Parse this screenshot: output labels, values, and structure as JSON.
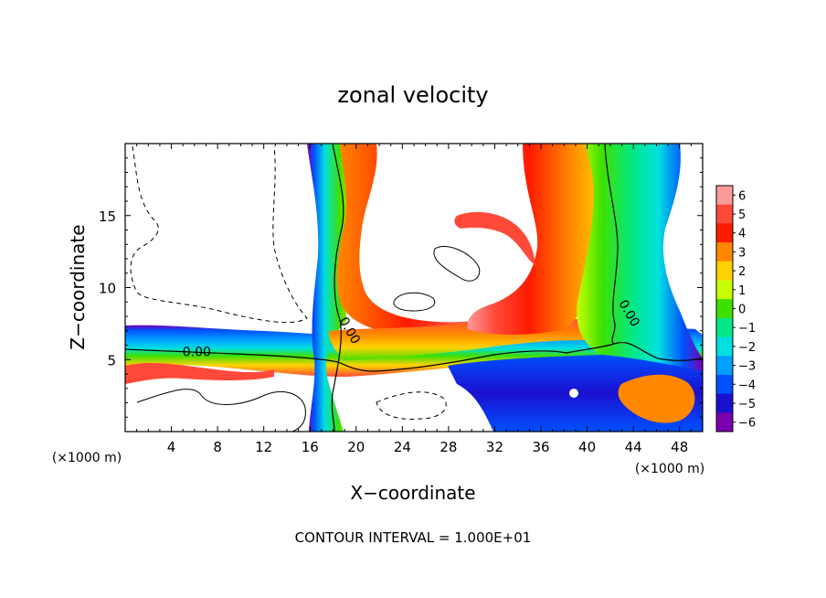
{
  "chart_data": {
    "type": "heatmap",
    "title": "zonal velocity",
    "xlabel": "X−coordinate",
    "ylabel": "Z−coordinate",
    "x_unit_left": "(×1000 m)",
    "x_unit_right": "(×1000 m)",
    "footer": "CONTOUR INTERVAL = 1.000E+01",
    "xlim": [
      0,
      50
    ],
    "ylim": [
      0,
      20
    ],
    "x_ticks": [
      4,
      8,
      12,
      16,
      20,
      24,
      28,
      32,
      36,
      40,
      44,
      48
    ],
    "x_tick_labels": [
      "4",
      "8",
      "12",
      "16",
      "20",
      "24",
      "28",
      "32",
      "36",
      "40",
      "44",
      "48"
    ],
    "y_ticks": [
      5,
      10,
      15
    ],
    "y_tick_labels": [
      "5",
      "10",
      "15"
    ],
    "contour_labels": [
      "0.00",
      "0.00",
      "0.00"
    ],
    "colorbar": {
      "levels": [
        6,
        5,
        4,
        3,
        2,
        1,
        0,
        -1,
        -2,
        -3,
        -4,
        -5,
        -6
      ],
      "tick_labels": [
        "6",
        "5",
        "4",
        "3",
        "2",
        "1",
        "0",
        "−1",
        "−2",
        "−3",
        "−4",
        "−5",
        "−6"
      ],
      "colors": [
        "#ff9a9a",
        "#ff4a3a",
        "#ff1a00",
        "#ff8800",
        "#ffd200",
        "#c8ff00",
        "#3ee000",
        "#00e88a",
        "#00e0e0",
        "#00a0ff",
        "#0050ff",
        "#1a10d0",
        "#7a00b0"
      ]
    },
    "bands": [
      {
        "name": "left-vertical",
        "x": [
          16.0,
          21.0
        ],
        "z": [
          0,
          20
        ],
        "profile": [
          "#7a00b0",
          "#0050ff",
          "#00e0e0",
          "#3ee000",
          "#ffd200",
          "#ff1a00"
        ]
      },
      {
        "name": "middle-vertical",
        "x": [
          19.0,
          22.5
        ],
        "z": [
          7,
          20
        ],
        "profile": [
          "#3ee000",
          "#ffd200",
          "#ff8800",
          "#ff1a00",
          "#ff4a3a"
        ]
      },
      {
        "name": "right-jet",
        "x": [
          34.0,
          40.0
        ],
        "z": [
          6,
          20
        ],
        "profile": [
          "#ff9a9a",
          "#ff4a3a",
          "#ff1a00",
          "#ff8800",
          "#ffd200"
        ]
      },
      {
        "name": "right-negative",
        "x": [
          40.0,
          47.0
        ],
        "z": [
          0,
          20
        ],
        "profile": [
          "#3ee000",
          "#00e88a",
          "#00e0e0",
          "#00a0ff",
          "#0050ff",
          "#7a00b0"
        ]
      },
      {
        "name": "lower-horizontal",
        "x": [
          0,
          40
        ],
        "z": [
          3.5,
          7.0
        ],
        "profile": [
          "#7a00b0",
          "#0050ff",
          "#00a0ff",
          "#00e0e0",
          "#3ee000",
          "#ffd200",
          "#ff4a3a"
        ]
      }
    ]
  }
}
